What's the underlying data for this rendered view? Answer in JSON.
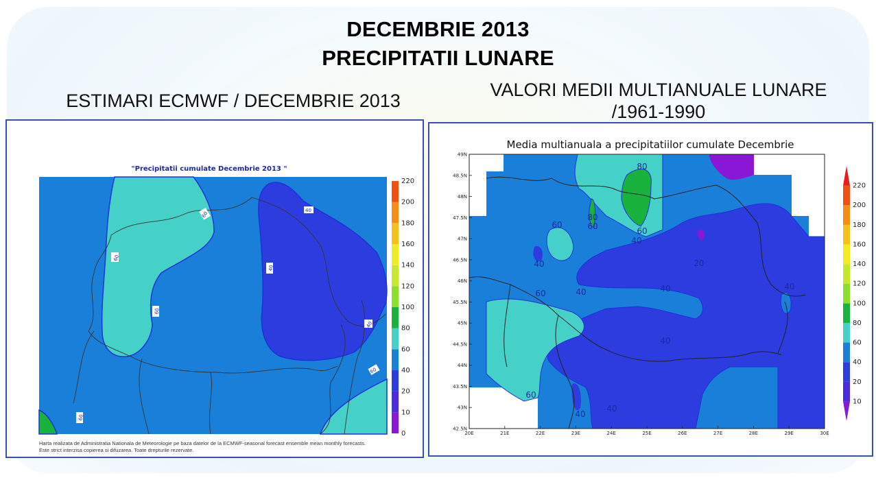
{
  "header": {
    "title_line1": "DECEMBRIE 2013",
    "title_line2": "PRECIPITATII LUNARE"
  },
  "left_panel": {
    "heading": "ESTIMARI ECMWF / DECEMBRIE 2013",
    "map_title": "\"Precipitatii cumulate Decembrie 2013 \"",
    "credit_line1": "Harta realizata de Administratia Nationala de Meteorologie pe baza datelor de la ECMWF-seasonal forecast ensemble mean monthly forecasts.",
    "credit_line2": "Este strict interzisa copierea si difuzarea. Toate drepturile rezervate.",
    "contour_labels": [
      "60",
      "60",
      "60",
      "40",
      "40",
      "40",
      "60",
      "60"
    ]
  },
  "right_panel": {
    "heading_line1": "VALORI MEDII MULTIANUALE LUNARE",
    "heading_line2": "/1961-1990",
    "map_title": "Media multianuala a precipitatiilor cumulate Decembrie",
    "lat_ticks": [
      "49N",
      "48.5N",
      "48N",
      "47.5N",
      "47N",
      "46.5N",
      "46N",
      "45.5N",
      "45N",
      "44.5N",
      "44N",
      "43.5N",
      "43N",
      "42.5N"
    ],
    "lon_ticks": [
      "20E",
      "21E",
      "22E",
      "23E",
      "24E",
      "25E",
      "26E",
      "27E",
      "28E",
      "29E",
      "30E"
    ],
    "contour_labels": [
      "80",
      "80",
      "60",
      "60",
      "60",
      "40",
      "40",
      "20",
      "60",
      "40",
      "40",
      "40",
      "40",
      "60",
      "40",
      "40"
    ]
  },
  "legend": {
    "ticks": [
      "0",
      "10",
      "20",
      "40",
      "60",
      "80",
      "100",
      "120",
      "140",
      "160",
      "180",
      "200",
      "220"
    ],
    "colors": [
      "#8a17d6",
      "#4a2be0",
      "#2d3cde",
      "#1a7fd9",
      "#46d1c8",
      "#18b23c",
      "#8ede2e",
      "#c8e82e",
      "#f2ea24",
      "#f5c01c",
      "#f58c14",
      "#f05012",
      "#e81e18"
    ]
  }
}
